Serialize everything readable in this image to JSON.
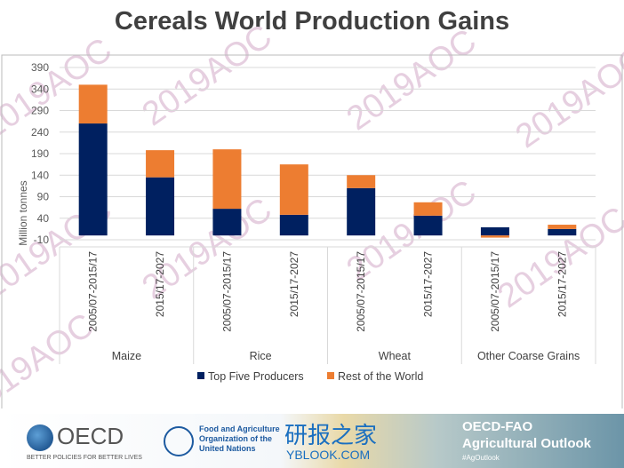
{
  "chart_data": {
    "type": "bar",
    "stacked": true,
    "title": "Cereals World Production Gains",
    "ylabel": "Million tonnes",
    "ylim": [
      -10,
      390
    ],
    "yticks": [
      -10,
      40,
      90,
      140,
      190,
      240,
      290,
      340,
      390
    ],
    "grid": true,
    "groups": [
      "Maize",
      "Rice",
      "Wheat",
      "Other Coarse Grains"
    ],
    "categories": [
      "2005/07-2015/17",
      "2015/17-2027",
      "2005/07-2015/17",
      "2015/17-2027",
      "2005/07-2015/17",
      "2015/17-2027",
      "2005/07-2015/17",
      "2015/17-2027"
    ],
    "series": [
      {
        "name": "Top Five Producers",
        "color": "#002060",
        "values": [
          260,
          135,
          62,
          48,
          110,
          46,
          19,
          15
        ]
      },
      {
        "name": "Rest of the World",
        "color": "#ED7D31",
        "values": [
          90,
          63,
          138,
          117,
          30,
          31,
          -5,
          10
        ]
      }
    ],
    "legend": "bottom"
  },
  "footer": {
    "oecd": "OECD",
    "oecd_tagline": "BETTER POLICIES FOR BETTER LIVES",
    "fao": "Food and Agriculture Organization of the United Nations",
    "watermark_cn": "研报之家",
    "watermark_url": "YBLOOK.COM",
    "outlook_line1": "OECD-FAO",
    "outlook_line2": "Agricultural Outlook",
    "hashtag": "#AgOutlook"
  },
  "watermark": "2019AOC"
}
